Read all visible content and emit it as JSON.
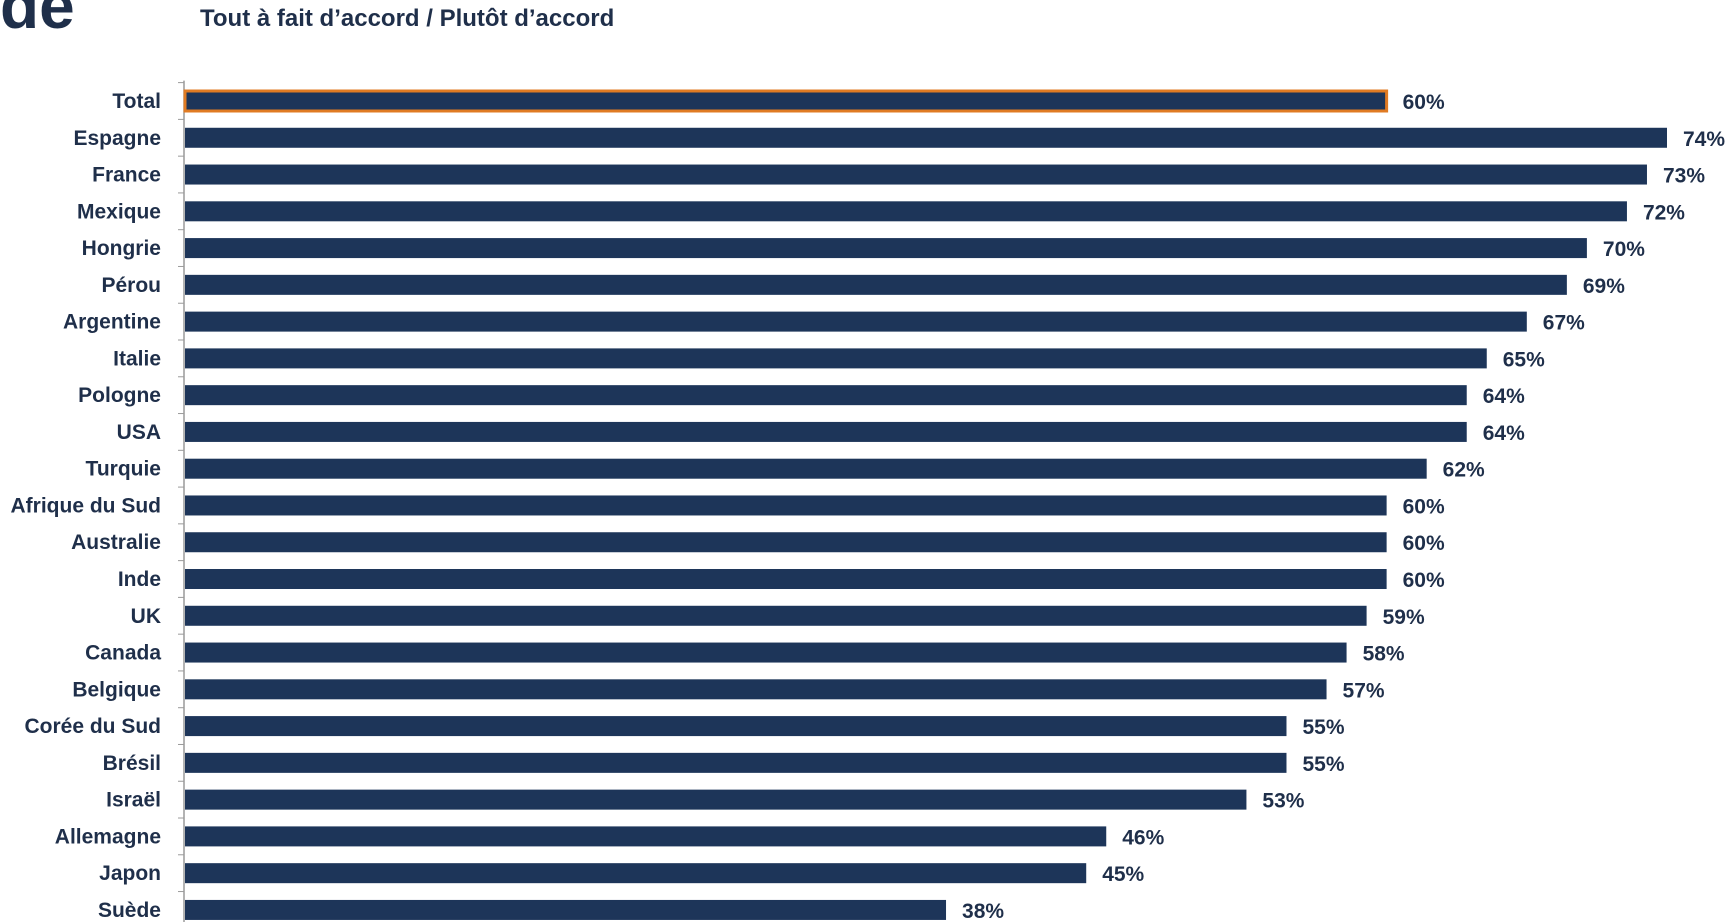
{
  "header": {
    "fragment_text": "de",
    "subtitle": "Tout à fait d’accord / Plutôt d’accord"
  },
  "chart_data": {
    "type": "bar",
    "orientation": "horizontal",
    "title": "",
    "subtitle": "Tout à fait d’accord / Plutôt d’accord",
    "categories": [
      "Total",
      "Espagne",
      "France",
      "Mexique",
      "Hongrie",
      "Pérou",
      "Argentine",
      "Italie",
      "Pologne",
      "USA",
      "Turquie",
      "Afrique du Sud",
      "Australie",
      "Inde",
      "UK",
      "Canada",
      "Belgique",
      "Corée du Sud",
      "Brésil",
      "Israël",
      "Allemagne",
      "Japon",
      "Suède"
    ],
    "values": [
      60,
      74,
      73,
      72,
      70,
      69,
      67,
      65,
      64,
      64,
      62,
      60,
      60,
      60,
      59,
      58,
      57,
      55,
      55,
      53,
      46,
      45,
      38
    ],
    "value_labels": [
      "60%",
      "74%",
      "73%",
      "72%",
      "70%",
      "69%",
      "67%",
      "65%",
      "64%",
      "64%",
      "62%",
      "60%",
      "60%",
      "60%",
      "59%",
      "58%",
      "57%",
      "55%",
      "55%",
      "53%",
      "46%",
      "45%",
      "38%"
    ],
    "xlim": [
      0,
      74
    ],
    "unit": "%",
    "grid": false,
    "highlight_category": "Total",
    "colors": {
      "bar": "#1d3559",
      "highlight_outline": "#e07b23",
      "axis": "#9a9a9a",
      "text": "#1f2f4a"
    }
  }
}
